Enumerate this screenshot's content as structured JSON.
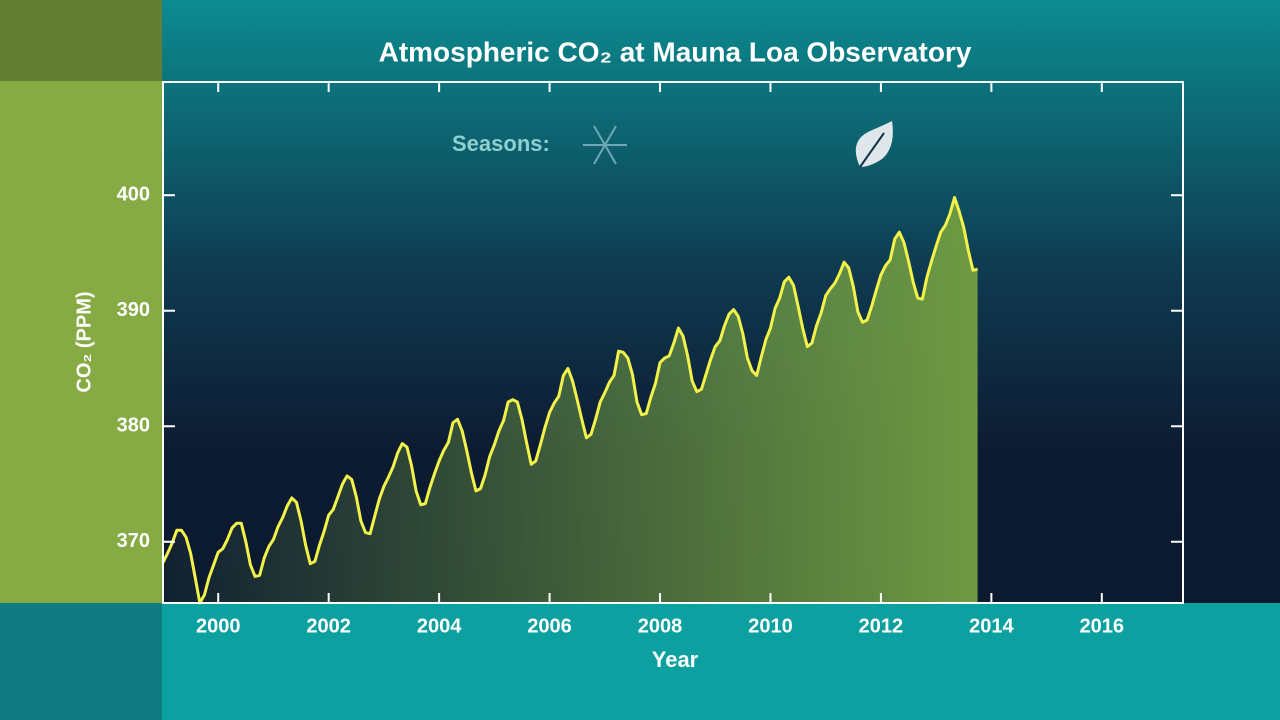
{
  "chart_data": {
    "type": "area-line",
    "title": "Atmospheric CO₂ at Mauna Loa Observatory",
    "x_label": "Year",
    "y_label": "CO₂ (PPM)",
    "annotation": "Seasons:",
    "line_color": "#f2f24a",
    "fill_color": "#6f9a42",
    "xlim": [
      1999,
      2017.47
    ],
    "ylim": [
      364.7,
      409.8
    ],
    "xticks": [
      2000,
      2002,
      2004,
      2006,
      2008,
      2010,
      2012,
      2014,
      2016
    ],
    "yticks": [
      370,
      380,
      390,
      400
    ],
    "x": [
      1999,
      1999.083,
      1999.167,
      1999.25,
      1999.333,
      1999.417,
      1999.5,
      1999.583,
      1999.667,
      1999.75,
      1999.833,
      1999.917,
      2000,
      2000.083,
      2000.167,
      2000.25,
      2000.333,
      2000.417,
      2000.5,
      2000.583,
      2000.667,
      2000.75,
      2000.833,
      2000.917,
      2001,
      2001.083,
      2001.167,
      2001.25,
      2001.333,
      2001.417,
      2001.5,
      2001.583,
      2001.667,
      2001.75,
      2001.833,
      2001.917,
      2002,
      2002.083,
      2002.167,
      2002.25,
      2002.333,
      2002.417,
      2002.5,
      2002.583,
      2002.667,
      2002.75,
      2002.833,
      2002.917,
      2003,
      2003.083,
      2003.167,
      2003.25,
      2003.333,
      2003.417,
      2003.5,
      2003.583,
      2003.667,
      2003.75,
      2003.833,
      2003.917,
      2004,
      2004.083,
      2004.167,
      2004.25,
      2004.333,
      2004.417,
      2004.5,
      2004.583,
      2004.667,
      2004.75,
      2004.833,
      2004.917,
      2005,
      2005.083,
      2005.167,
      2005.25,
      2005.333,
      2005.417,
      2005.5,
      2005.583,
      2005.667,
      2005.75,
      2005.833,
      2005.917,
      2006,
      2006.083,
      2006.167,
      2006.25,
      2006.333,
      2006.417,
      2006.5,
      2006.583,
      2006.667,
      2006.75,
      2006.833,
      2006.917,
      2007,
      2007.083,
      2007.167,
      2007.25,
      2007.333,
      2007.417,
      2007.5,
      2007.583,
      2007.667,
      2007.75,
      2007.833,
      2007.917,
      2008,
      2008.083,
      2008.167,
      2008.25,
      2008.333,
      2008.417,
      2008.5,
      2008.583,
      2008.667,
      2008.75,
      2008.833,
      2008.917,
      2009,
      2009.083,
      2009.167,
      2009.25,
      2009.333,
      2009.417,
      2009.5,
      2009.583,
      2009.667,
      2009.75,
      2009.833,
      2009.917,
      2010,
      2010.083,
      2010.167,
      2010.25,
      2010.333,
      2010.417,
      2010.5,
      2010.583,
      2010.667,
      2010.75,
      2010.833,
      2010.917,
      2011,
      2011.083,
      2011.167,
      2011.25,
      2011.333,
      2011.417,
      2011.5,
      2011.583,
      2011.667,
      2011.75,
      2011.833,
      2011.917,
      2012,
      2012.083,
      2012.167,
      2012.25,
      2012.333,
      2012.417,
      2012.5,
      2012.583,
      2012.667,
      2012.75,
      2012.833,
      2012.917,
      2013,
      2013.083,
      2013.167,
      2013.25,
      2013.333,
      2013.417,
      2013.5,
      2013.583,
      2013.667,
      2013.75
    ],
    "values": [
      368.2,
      369.0,
      369.9,
      371.0,
      371.0,
      370.4,
      369.0,
      366.9,
      364.7,
      365.4,
      366.9,
      368.0,
      369.1,
      369.4,
      370.2,
      371.2,
      371.6,
      371.6,
      370.0,
      368.0,
      367.0,
      367.1,
      368.6,
      369.6,
      370.2,
      371.3,
      372.1,
      373.1,
      373.8,
      373.4,
      371.8,
      369.7,
      368.1,
      368.3,
      369.7,
      370.9,
      372.3,
      372.8,
      373.9,
      375.0,
      375.7,
      375.4,
      373.9,
      371.8,
      370.8,
      370.7,
      372.2,
      373.7,
      374.8,
      375.6,
      376.5,
      377.7,
      378.5,
      378.2,
      376.6,
      374.4,
      373.2,
      373.3,
      374.7,
      375.9,
      377.0,
      377.9,
      378.6,
      380.3,
      380.6,
      379.6,
      377.9,
      376.0,
      374.4,
      374.6,
      375.8,
      377.4,
      378.4,
      379.6,
      380.5,
      382.1,
      382.3,
      382.1,
      380.6,
      378.6,
      376.7,
      377.0,
      378.4,
      379.9,
      381.2,
      382.0,
      382.6,
      384.4,
      385.0,
      383.9,
      382.3,
      380.6,
      379.0,
      379.3,
      380.6,
      382.1,
      382.9,
      383.8,
      384.4,
      386.5,
      386.4,
      385.9,
      384.5,
      382.1,
      381.0,
      381.1,
      382.5,
      383.7,
      385.5,
      385.9,
      386.1,
      387.2,
      388.5,
      387.8,
      386.1,
      383.9,
      383.0,
      383.2,
      384.5,
      385.8,
      386.9,
      387.4,
      388.7,
      389.7,
      390.1,
      389.5,
      388.0,
      385.9,
      384.8,
      384.4,
      386.0,
      387.5,
      388.5,
      390.2,
      391.1,
      392.5,
      392.9,
      392.2,
      390.4,
      388.5,
      386.9,
      387.2,
      388.7,
      389.8,
      391.3,
      391.9,
      392.4,
      393.2,
      394.2,
      393.7,
      392.1,
      389.9,
      389.0,
      389.2,
      390.4,
      391.8,
      393.1,
      393.9,
      394.4,
      396.2,
      396.8,
      395.9,
      394.3,
      392.5,
      391.1,
      391.0,
      392.9,
      394.3,
      395.6,
      396.8,
      397.4,
      398.4,
      399.8,
      398.6,
      397.2,
      395.2,
      393.5,
      393.6
    ]
  }
}
